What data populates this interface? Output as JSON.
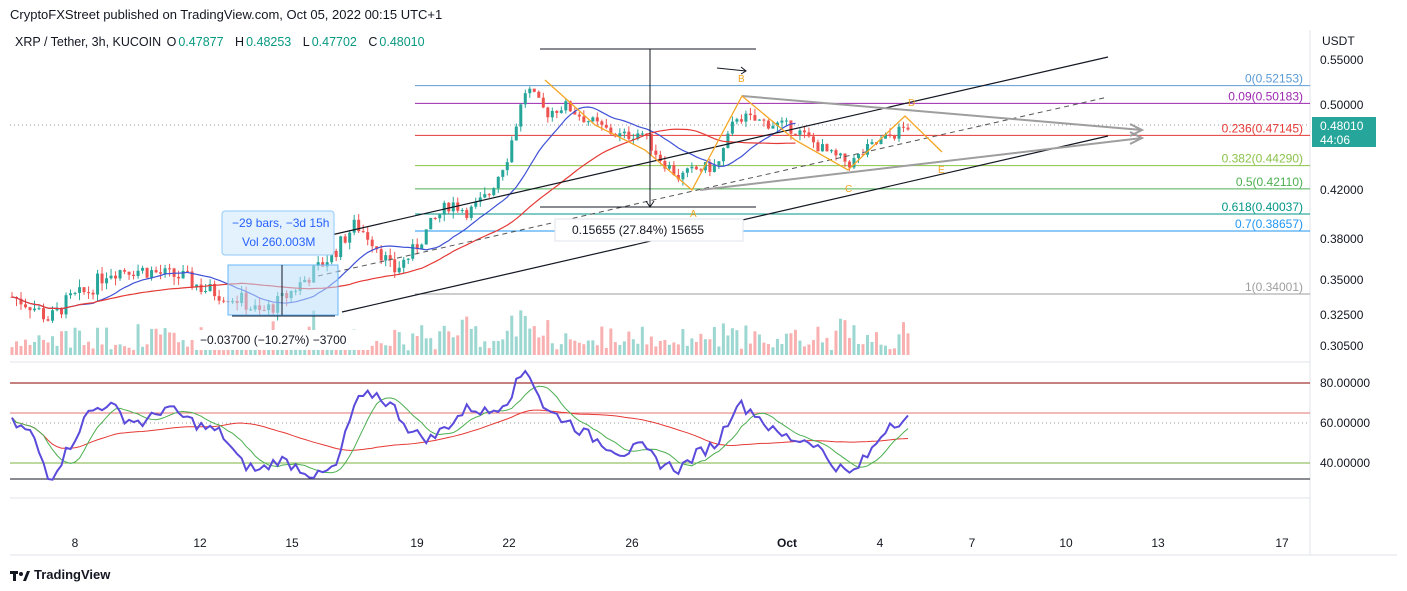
{
  "header": {
    "publisher": "CryptoFXStreet published on TradingView.com, Oct 05, 2022 00:15 UTC+1"
  },
  "legend": {
    "symbol": "XRP / Tether, 3h, KUCOIN",
    "o_label": "O",
    "o": "0.47877",
    "h_label": "H",
    "h": "0.48253",
    "l_label": "L",
    "l": "0.47702",
    "c_label": "C",
    "c": "0.48010"
  },
  "footer": {
    "brand": "TradingView"
  },
  "colors": {
    "up": "#26a69a",
    "down": "#ef5350",
    "ma_blue": "#3f51d6",
    "ma_red": "#e53935",
    "orange": "#f5a623",
    "rsi": "#5b4bdb"
  },
  "chart_data": [
    {
      "type": "candlestick",
      "currency": "USDT",
      "price_ticks": [
        "0.55000",
        "0.50000",
        "0.42000",
        "0.38000",
        "0.35000",
        "0.32500",
        "0.30500"
      ],
      "x_ticks": [
        "8",
        "12",
        "15",
        "19",
        "22",
        "26",
        "Oct",
        "4",
        "7",
        "10",
        "13",
        "17"
      ],
      "last_price": {
        "value": "0.48010",
        "countdown": "44:06"
      },
      "fibonacci": [
        {
          "level": "0",
          "price": "0.52153",
          "color": "#5b9bd5"
        },
        {
          "level": "0.09",
          "price": "0.50183",
          "color": "#9c27b0"
        },
        {
          "level": "0.236",
          "price": "0.47145",
          "color": "#e53935"
        },
        {
          "level": "0.382",
          "price": "0.44290",
          "color": "#8bc34a"
        },
        {
          "level": "0.5",
          "price": "0.42110",
          "color": "#4caf50"
        },
        {
          "level": "0.618",
          "price": "0.40037",
          "color": "#009688"
        },
        {
          "level": "0.7",
          "price": "0.38657",
          "color": "#2196f3"
        },
        {
          "level": "1",
          "price": "0.34001",
          "color": "#9e9e9e"
        }
      ],
      "annotations": {
        "measure_up": "0.15655 (27.84%) 15655",
        "measure_down": "−0.03700 (−10.27%) −3700",
        "range_bars": "−29 bars, −3d 15h",
        "range_vol": "Vol 260.003M",
        "wave_labels": [
          "A",
          "B",
          "C",
          "D",
          "E"
        ]
      },
      "series": [
        {
          "name": "XRP / Tether 3h",
          "approx_closes": [
            0.338,
            0.332,
            0.322,
            0.336,
            0.342,
            0.356,
            0.358,
            0.357,
            0.354,
            0.352,
            0.344,
            0.34,
            0.336,
            0.326,
            0.334,
            0.346,
            0.358,
            0.372,
            0.392,
            0.378,
            0.356,
            0.37,
            0.392,
            0.41,
            0.402,
            0.416,
            0.452,
            0.52,
            0.492,
            0.5,
            0.488,
            0.478,
            0.47,
            0.475,
            0.45,
            0.432,
            0.44,
            0.442,
            0.49,
            0.485,
            0.482,
            0.478,
            0.465,
            0.452,
            0.445,
            0.46,
            0.47,
            0.48
          ]
        }
      ]
    },
    {
      "type": "line",
      "indicator": "RSI",
      "y_ticks": [
        "80.00000",
        "60.00000",
        "40.00000"
      ],
      "series": [
        {
          "approx_values": [
            60,
            55,
            32,
            48,
            65,
            70,
            62,
            60,
            68,
            63,
            58,
            55,
            40,
            36,
            42,
            38,
            33,
            38,
            70,
            75,
            68,
            55,
            52,
            60,
            68,
            65,
            72,
            88,
            66,
            62,
            55,
            50,
            45,
            48,
            40,
            37,
            45,
            50,
            70,
            65,
            55,
            52,
            51,
            40,
            34,
            45,
            60,
            62
          ]
        }
      ]
    }
  ]
}
